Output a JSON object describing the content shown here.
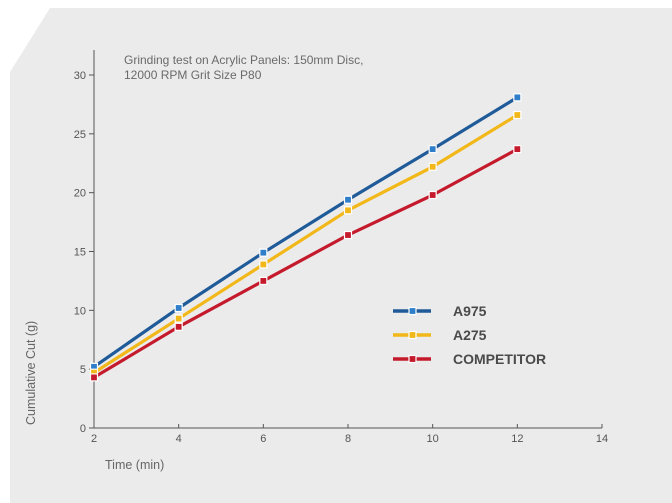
{
  "chart_data": {
    "type": "line",
    "title": "Grinding test on Acrylic Panels: 150mm Disc,",
    "subtitle": "12000 RPM Grit Size P80",
    "xlabel": "Time (min)",
    "ylabel": "Cumulative Cut (g)",
    "xlim": [
      2,
      14
    ],
    "ylim": [
      0,
      30
    ],
    "xticks": [
      2,
      4,
      6,
      8,
      10,
      12,
      14
    ],
    "yticks": [
      0,
      5,
      10,
      15,
      20,
      25,
      30
    ],
    "grid": false,
    "legend_position": "center-right",
    "x": [
      2,
      4,
      6,
      8,
      10,
      12
    ],
    "series": [
      {
        "name": "A975",
        "color": "#1f5a99",
        "marker_fill": "#2f7ec9",
        "values": [
          5.2,
          10.2,
          14.9,
          19.4,
          23.7,
          28.1
        ]
      },
      {
        "name": "A275",
        "color": "#f2b718",
        "marker_fill": "#f2b718",
        "values": [
          4.7,
          9.3,
          13.9,
          18.5,
          22.2,
          26.6
        ]
      },
      {
        "name": "COMPETITOR",
        "color": "#c41a2c",
        "marker_fill": "#c41a2c",
        "values": [
          4.3,
          8.6,
          12.5,
          16.4,
          19.8,
          23.7
        ]
      }
    ]
  },
  "colors": {
    "panel": "#ebebeb",
    "axis": "#555555",
    "marker_border": "#ffffff"
  }
}
